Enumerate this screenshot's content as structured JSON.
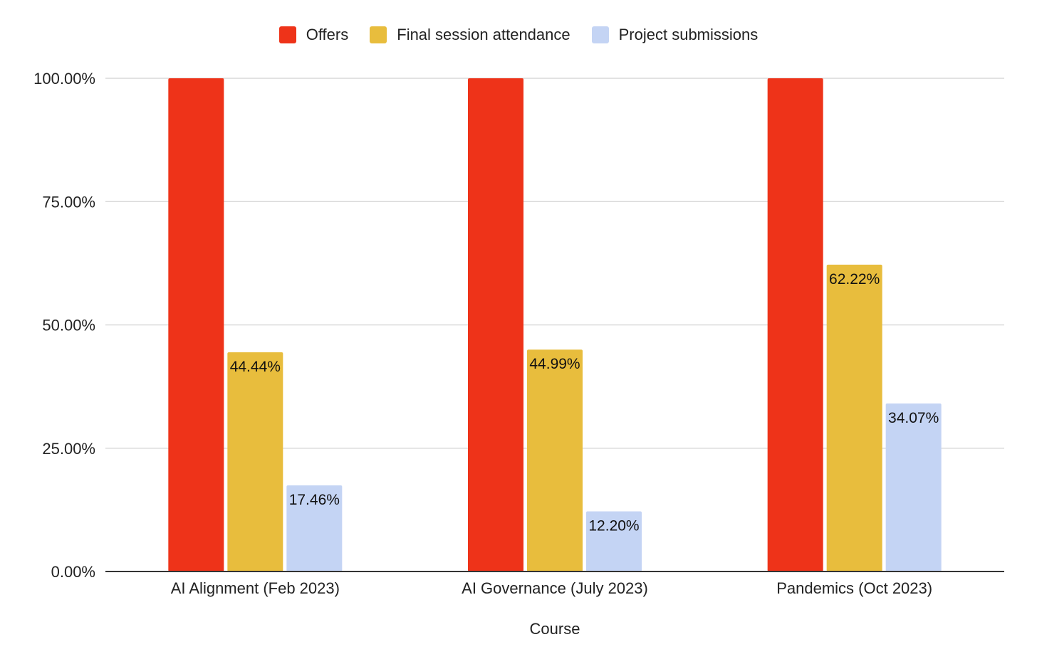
{
  "chart_data": {
    "type": "bar",
    "title": "",
    "xlabel": "Course",
    "ylabel": "",
    "ylim": [
      0,
      100
    ],
    "yticks": [
      "0.00%",
      "25.00%",
      "50.00%",
      "75.00%",
      "100.00%"
    ],
    "ytick_values": [
      0,
      25,
      50,
      75,
      100
    ],
    "categories": [
      "AI Alignment (Feb 2023)",
      "AI Governance (July 2023)",
      "Pandemics (Oct 2023)"
    ],
    "series": [
      {
        "name": "Offers",
        "color": "#EE3319",
        "values": [
          100,
          100,
          100
        ],
        "labels": [
          "",
          "",
          ""
        ]
      },
      {
        "name": "Final session attendance",
        "color": "#E8BD3D",
        "values": [
          44.44,
          44.99,
          62.22
        ],
        "labels": [
          "44.44%",
          "44.99%",
          "62.22%"
        ]
      },
      {
        "name": "Project submissions",
        "color": "#C4D4F4",
        "values": [
          17.46,
          12.2,
          34.07
        ],
        "labels": [
          "17.46%",
          "12.20%",
          "34.07%"
        ]
      }
    ],
    "legend_position": "top",
    "grid": true
  }
}
